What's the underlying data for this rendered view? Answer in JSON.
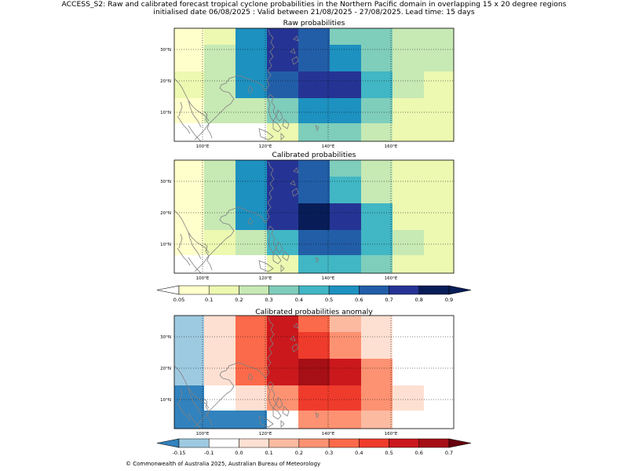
{
  "header": {
    "line1": "ACCESS_S2: Raw and calibrated forecast tropical cyclone probabilities in the Northern Pacific domain in overlapping 15 x 20 degree regions",
    "line2": "initialised date 06/08/2025 :  Valid between 21/08/2025 - 27/08/2025. Lead time: 15 days"
  },
  "axes": {
    "x_ticks": [
      "100°E",
      "120°E",
      "140°E",
      "160°E"
    ],
    "y_ticks": [
      "30°N",
      "20°N",
      "10°N"
    ]
  },
  "panels": [
    {
      "title": "Raw probabilities",
      "scale": "prob",
      "rows": [
        [
          "#ffffcc",
          "#edf8b1",
          "#1d91c0",
          "#253494",
          "#225ea8",
          "#7fcdbb",
          "#7fcdbb",
          "#c7e9b4",
          "#c7e9b4"
        ],
        [
          "#ffffcc",
          "#c7e9b4",
          "#1d91c0",
          "#253494",
          "#225ea8",
          "#1d91c0",
          "#7fcdbb",
          "#c7e9b4",
          "#c7e9b4"
        ],
        [
          "#edf8b1",
          "#c7e9b4",
          "#1d91c0",
          "#225ea8",
          "#253494",
          "#253494",
          "#41b6c4",
          "#c7e9b4",
          "#edf8b1"
        ],
        [
          "#ffffcc",
          "#c7e9b4",
          "#c7e9b4",
          "#7fcdbb",
          "#1d91c0",
          "#1d91c0",
          "#7fcdbb",
          "#edf8b1",
          "#edf8b1"
        ],
        [
          "#ffffff",
          "#ffffff",
          "#ffffff",
          "#edf8b1",
          "#7fcdbb",
          "#7fcdbb",
          "#c7e9b4",
          "#edf8b1",
          "#edf8b1"
        ]
      ]
    },
    {
      "title": "Calibrated probabilities",
      "scale": "prob",
      "rows": [
        [
          "#ffffcc",
          "#c7e9b4",
          "#1d91c0",
          "#253494",
          "#225ea8",
          "#7fcdbb",
          "#c7e9b4",
          "#edf8b1",
          "#edf8b1"
        ],
        [
          "#ffffcc",
          "#c7e9b4",
          "#1d91c0",
          "#253494",
          "#225ea8",
          "#41b6c4",
          "#c7e9b4",
          "#edf8b1",
          "#edf8b1"
        ],
        [
          "#ffffcc",
          "#c7e9b4",
          "#1d91c0",
          "#253494",
          "#081d58",
          "#253494",
          "#41b6c4",
          "#edf8b1",
          "#edf8b1"
        ],
        [
          "#ffffcc",
          "#edf8b1",
          "#c7e9b4",
          "#41b6c4",
          "#225ea8",
          "#225ea8",
          "#41b6c4",
          "#c7e9b4",
          "#edf8b1"
        ],
        [
          "#ffffff",
          "#ffffff",
          "#ffffff",
          "#edf8b1",
          "#41b6c4",
          "#41b6c4",
          "#7fcdbb",
          "#edf8b1",
          "#edf8b1"
        ]
      ]
    },
    {
      "title": "Calibrated probabilities anomaly",
      "scale": "anom",
      "rows": [
        [
          "#9ecae1",
          "#fee0d2",
          "#fb6a4a",
          "#cb181d",
          "#fb6a4a",
          "#fcbba1",
          "#fee0d2",
          "#ffffff",
          "#ffffff"
        ],
        [
          "#9ecae1",
          "#fee0d2",
          "#fb6a4a",
          "#cb181d",
          "#ef3b2c",
          "#fc9272",
          "#fee0d2",
          "#ffffff",
          "#ffffff"
        ],
        [
          "#9ecae1",
          "#fee0d2",
          "#fb6a4a",
          "#cb181d",
          "#a50f15",
          "#cb181d",
          "#fc9272",
          "#ffffff",
          "#ffffff"
        ],
        [
          "#3182bd",
          "#ffffff",
          "#fee0d2",
          "#fc9272",
          "#ef3b2c",
          "#ef3b2c",
          "#fc9272",
          "#fee0d2",
          "#ffffff"
        ],
        [
          "#3182bd",
          "#3182bd",
          "#3182bd",
          "#ffffff",
          "#fc9272",
          "#fc9272",
          "#fcbba1",
          "#ffffff",
          "#ffffff"
        ]
      ]
    }
  ],
  "colorbars": {
    "prob": {
      "labels": [
        "0.05",
        "0.1",
        "0.2",
        "0.3",
        "0.4",
        "0.5",
        "0.6",
        "0.7",
        "0.8",
        "0.9"
      ],
      "colors": [
        "#ffffcc",
        "#edf8b1",
        "#c7e9b4",
        "#7fcdbb",
        "#41b6c4",
        "#1d91c0",
        "#225ea8",
        "#253494",
        "#081d58"
      ],
      "under": "#ffffff",
      "over": "#081d58"
    },
    "anom": {
      "labels": [
        "-0.15",
        "-0.1",
        "0.0",
        "0.1",
        "0.2",
        "0.3",
        "0.4",
        "0.5",
        "0.6",
        "0.7"
      ],
      "colors": [
        "#9ecae1",
        "#ffffff",
        "#fee0d2",
        "#fcbba1",
        "#fc9272",
        "#fb6a4a",
        "#ef3b2c",
        "#cb181d",
        "#a50f15"
      ],
      "under": "#3182bd",
      "over": "#67000d"
    }
  },
  "copyright": "© Commonwealth of Australia 2025, Australian Bureau of Meteorology",
  "colors": {
    "coast": "#808080",
    "grid": "#000000"
  }
}
